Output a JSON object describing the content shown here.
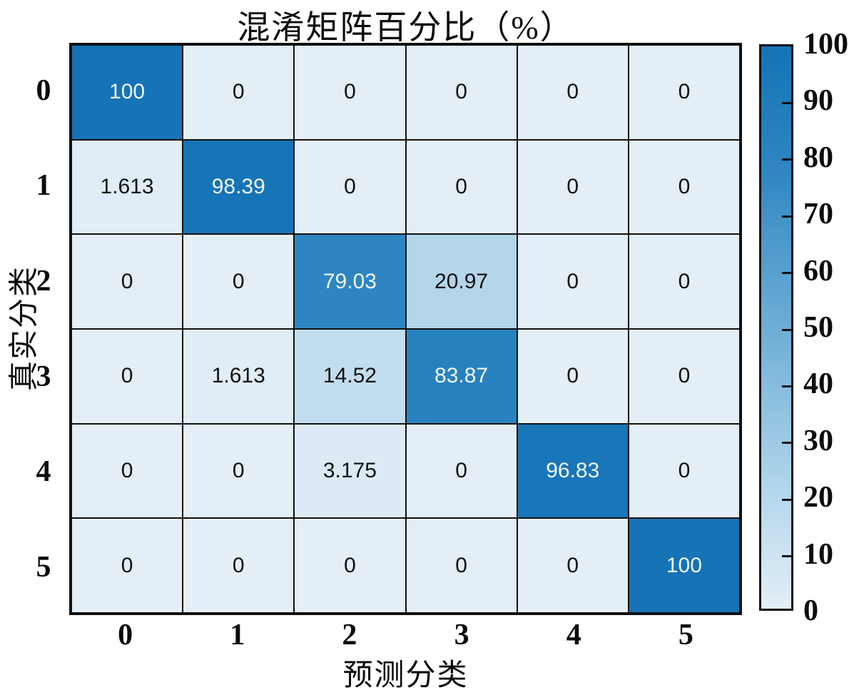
{
  "figure": {
    "background": "#ffffff",
    "frame_color": "#101010"
  },
  "chart_data": {
    "type": "heatmap",
    "title": "混淆矩阵百分比（%）",
    "xlabel": "预测分类",
    "ylabel": "真实分类",
    "x_tick_labels": [
      "0",
      "1",
      "2",
      "3",
      "4",
      "5"
    ],
    "y_tick_labels": [
      "0",
      "1",
      "2",
      "3",
      "4",
      "5"
    ],
    "cell_labels": [
      [
        "100",
        "0",
        "0",
        "0",
        "0",
        "0"
      ],
      [
        "1.613",
        "98.39",
        "0",
        "0",
        "0",
        "0"
      ],
      [
        "0",
        "0",
        "79.03",
        "20.97",
        "0",
        "0"
      ],
      [
        "0",
        "1.613",
        "14.52",
        "83.87",
        "0",
        "0"
      ],
      [
        "0",
        "0",
        "3.175",
        "0",
        "96.83",
        "0"
      ],
      [
        "0",
        "0",
        "0",
        "0",
        "0",
        "100"
      ]
    ],
    "values": [
      [
        100,
        0,
        0,
        0,
        0,
        0
      ],
      [
        1.613,
        98.39,
        0,
        0,
        0,
        0
      ],
      [
        0,
        0,
        79.03,
        20.97,
        0,
        0
      ],
      [
        0,
        1.613,
        14.52,
        83.87,
        0,
        0
      ],
      [
        0,
        0,
        3.175,
        0,
        96.83,
        0
      ],
      [
        0,
        0,
        0,
        0,
        0,
        100
      ]
    ],
    "value_range": [
      0,
      100
    ],
    "colorbar_ticks": [
      0,
      10,
      20,
      30,
      40,
      50,
      60,
      70,
      80,
      90,
      100
    ],
    "colorbar_position": "right",
    "grid": "cell-borders"
  },
  "style": {
    "colormap_stops": [
      [
        0.0,
        "#e4eef7"
      ],
      [
        0.2,
        "#b5d7ec"
      ],
      [
        0.5,
        "#6daed5"
      ],
      [
        0.8,
        "#2c84c1"
      ],
      [
        1.0,
        "#1573b6"
      ]
    ],
    "light_text_color": "#f0f6fb",
    "dark_text_color": "#101010",
    "light_text_threshold": 50
  }
}
